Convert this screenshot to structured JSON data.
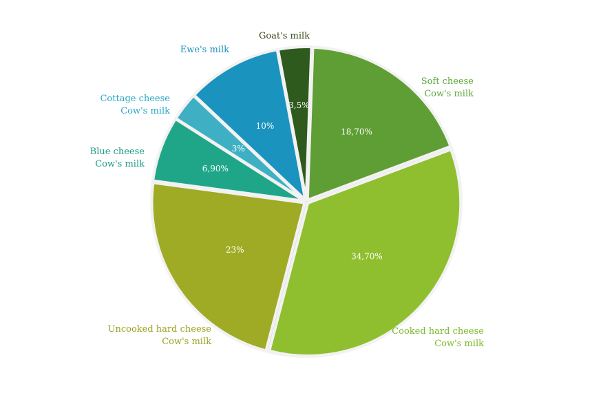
{
  "chart_data": {
    "type": "pie",
    "title": "",
    "slices": [
      {
        "label": [
          "Soft cheese",
          "Cow's milk"
        ],
        "value": 18.7,
        "value_label": "18,70%",
        "color": "#5f9e34"
      },
      {
        "label": [
          "Cooked hard cheese",
          "Cow's milk"
        ],
        "value": 34.7,
        "value_label": "34,70%",
        "color": "#8fbf2f"
      },
      {
        "label": [
          "Uncooked hard cheese",
          "Cow's milk"
        ],
        "value": 23,
        "value_label": "23%",
        "color": "#9fab24"
      },
      {
        "label": [
          "Blue cheese",
          "Cow's milk"
        ],
        "value": 6.9,
        "value_label": "6,90%",
        "color": "#1fa688"
      },
      {
        "label": [
          "Cottage cheese",
          "Cow's milk"
        ],
        "value": 3,
        "value_label": "3%",
        "color": "#3fb0c4"
      },
      {
        "label": [
          "Ewe's milk"
        ],
        "value": 10,
        "value_label": "10%",
        "color": "#1b93bf"
      },
      {
        "label": [
          "Goat's milk"
        ],
        "value": 3.5,
        "value_label": "3,5%",
        "color": "#2f5a1e"
      }
    ],
    "label_colors": [
      "#5aa83a",
      "#7cb82a",
      "#9aa31f",
      "#1a9a86",
      "#2aa8c8",
      "#1a8fb8",
      "#3a4a1a"
    ]
  }
}
